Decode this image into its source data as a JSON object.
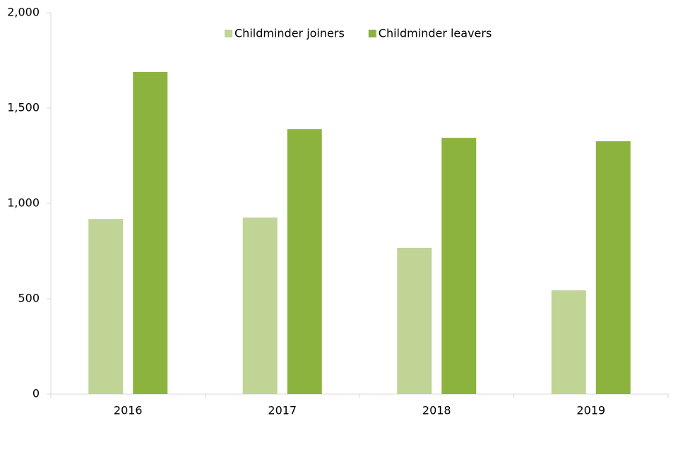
{
  "chart_data": {
    "type": "bar",
    "categories": [
      "2016",
      "2017",
      "2018",
      "2019"
    ],
    "series": [
      {
        "name": "Childminder joiners",
        "color": "#c0d496",
        "values": [
          918,
          926,
          767,
          544
        ]
      },
      {
        "name": "Childminder leavers",
        "color": "#8db33f",
        "values": [
          1689,
          1389,
          1344,
          1326
        ]
      }
    ],
    "ylim": [
      0,
      2000
    ],
    "yticks": [
      0,
      500,
      {
        "value": 1000,
        "label": "1,000"
      },
      {
        "value": 1500,
        "label": "1,500"
      },
      {
        "value": 2000,
        "label": "2,000"
      }
    ],
    "legend": "top"
  }
}
